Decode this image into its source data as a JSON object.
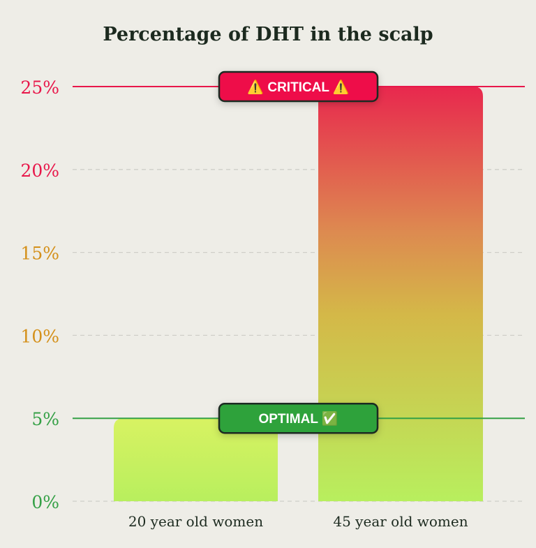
{
  "chart_data": {
    "type": "bar",
    "title": "Percentage of DHT in the scalp",
    "categories": [
      "20 year old women",
      "45 year old women"
    ],
    "values": [
      5,
      25
    ],
    "ylim": [
      0,
      25
    ],
    "yticks": [
      {
        "value": 0,
        "label": "0%",
        "color": "#34a046"
      },
      {
        "value": 5,
        "label": "5%",
        "color": "#34a046"
      },
      {
        "value": 10,
        "label": "10%",
        "color": "#d4901a"
      },
      {
        "value": 15,
        "label": "15%",
        "color": "#d4901a"
      },
      {
        "value": 20,
        "label": "20%",
        "color": "#e8174a"
      },
      {
        "value": 25,
        "label": "25%",
        "color": "#e8174a"
      }
    ],
    "grid": true,
    "reference_lines": [
      {
        "value": 25,
        "label": "⚠️ CRITICAL ⚠️",
        "color": "#e8174a",
        "badge_color": "#ee0f48"
      },
      {
        "value": 5,
        "label": "OPTIMAL ✅",
        "color": "#34a046",
        "badge_color": "#2fa23a"
      }
    ],
    "colors": {
      "background": "#eeede7",
      "title": "#1c2a1f",
      "bar_top_low": "#d8f262",
      "bar_bottom": "#b8ef5e",
      "bar_top_high": "#e8284e",
      "bar_mid_high": "#d4b848"
    }
  }
}
